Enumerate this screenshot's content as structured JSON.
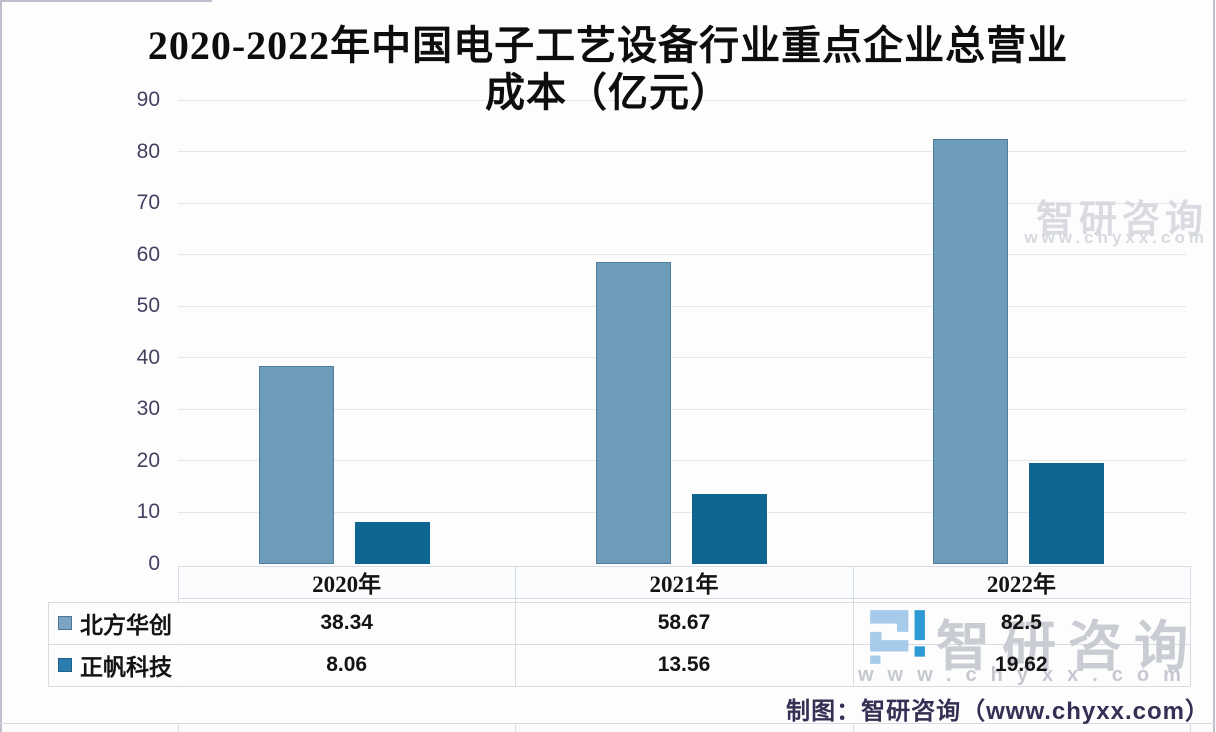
{
  "header": {
    "title_line1": "2020-2022年中国电子工艺设备行业重点企业总营业",
    "title_line2": "成本（亿元）"
  },
  "chart_data": {
    "type": "bar",
    "title": "2020-2022年中国电子工艺设备行业重点企业总营业成本（亿元）",
    "unit": "亿元",
    "categories": [
      "2020年",
      "2021年",
      "2022年"
    ],
    "series": [
      {
        "name": "北方华创",
        "color": "#6d9cba",
        "marker_color": "#7ba3c3",
        "values": [
          38.34,
          58.67,
          82.5
        ]
      },
      {
        "name": "正帆科技",
        "color": "#0d6590",
        "marker_color": "#2b7cae",
        "values": [
          8.06,
          13.56,
          19.62
        ]
      }
    ],
    "ylim": [
      0,
      90
    ],
    "yticks": [
      0,
      10,
      20,
      30,
      40,
      50,
      60,
      70,
      80,
      90
    ],
    "grid": true,
    "legend_position": "bottom-table-left"
  },
  "footer": {
    "caption": "制图：智研咨询（www.chyxx.com）"
  },
  "watermark": {
    "brand": "智研咨询",
    "url": "www.chyxx.com",
    "logo_light": "#a6cbea",
    "logo_dark": "#2f99d5"
  }
}
